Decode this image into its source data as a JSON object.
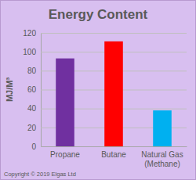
{
  "chart_data": {
    "type": "bar",
    "title": "Energy Content",
    "y_label": "MJ/M³",
    "categories": [
      "Propane",
      "Butane",
      "Natural Gas (Methane)"
    ],
    "values": [
      93,
      111,
      38
    ],
    "colors": [
      "#7030a0",
      "#ff0000",
      "#00b0f0"
    ],
    "ylim": [
      0,
      120
    ],
    "yticks": [
      0,
      20,
      40,
      60,
      80,
      100,
      120
    ],
    "grid": true,
    "annotations": [
      "Copyright © 2019 Elgas Ltd"
    ]
  }
}
